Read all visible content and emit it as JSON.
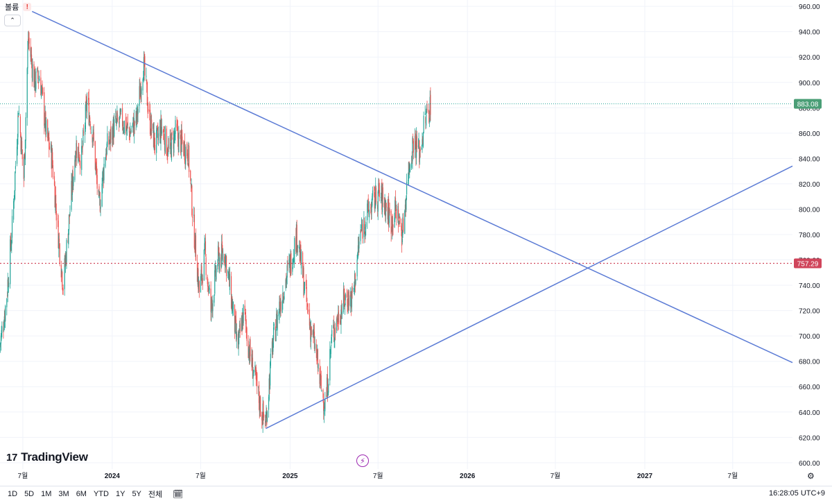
{
  "header": {
    "volume_label": "볼륨",
    "alert_icon": "exclamation-icon",
    "collapse_icon": "chevron-up-icon"
  },
  "logo": {
    "text": "TradingView",
    "icon": "tradingview-logo-icon"
  },
  "bottom_bar": {
    "ranges": [
      "1D",
      "5D",
      "1M",
      "3M",
      "6M",
      "YTD",
      "1Y",
      "5Y",
      "전체"
    ],
    "calendar_icon": "calendar-range-icon",
    "clock": "16:28:05 UTC+9"
  },
  "colors": {
    "up": "#26a69a",
    "down": "#ef5350",
    "trendline": "#5b7bd5",
    "price_label_bg": "#4a9e76",
    "hline_label_bg": "#d0455b",
    "grid": "#f0f3fa"
  },
  "chart_data": {
    "type": "candlestick",
    "y_axis": {
      "ylim": [
        595,
        965
      ],
      "ticks": [
        960,
        940,
        920,
        900,
        880,
        860,
        840,
        820,
        800,
        780,
        760,
        740,
        720,
        700,
        680,
        660,
        640,
        620,
        600
      ]
    },
    "x_axis": {
      "range": [
        "2023-05-15",
        "2027-11-01"
      ],
      "ticks": [
        {
          "date": "2023-07-01",
          "label": "7월"
        },
        {
          "date": "2024-01-01",
          "label": "2024"
        },
        {
          "date": "2024-07-01",
          "label": "7월"
        },
        {
          "date": "2025-01-01",
          "label": "2025"
        },
        {
          "date": "2025-07-01",
          "label": "7월"
        },
        {
          "date": "2026-01-01",
          "label": "2026"
        },
        {
          "date": "2026-07-01",
          "label": "7월"
        },
        {
          "date": "2027-01-01",
          "label": "2027"
        },
        {
          "date": "2027-07-01",
          "label": "7월"
        }
      ]
    },
    "price_anchors": [
      [
        "2023-05-15",
        693
      ],
      [
        "2023-05-28",
        728
      ],
      [
        "2023-06-10",
        790
      ],
      [
        "2023-06-22",
        880
      ],
      [
        "2023-07-03",
        825
      ],
      [
        "2023-07-12",
        935
      ],
      [
        "2023-07-25",
        900
      ],
      [
        "2023-08-05",
        905
      ],
      [
        "2023-08-18",
        860
      ],
      [
        "2023-08-30",
        840
      ],
      [
        "2023-09-12",
        780
      ],
      [
        "2023-09-22",
        740
      ],
      [
        "2023-10-05",
        795
      ],
      [
        "2023-10-18",
        850
      ],
      [
        "2023-10-30",
        840
      ],
      [
        "2023-11-10",
        885
      ],
      [
        "2023-11-22",
        860
      ],
      [
        "2023-12-05",
        800
      ],
      [
        "2023-12-18",
        845
      ],
      [
        "2024-01-05",
        865
      ],
      [
        "2024-01-22",
        870
      ],
      [
        "2024-02-05",
        860
      ],
      [
        "2024-02-20",
        870
      ],
      [
        "2024-03-05",
        915
      ],
      [
        "2024-03-18",
        870
      ],
      [
        "2024-03-30",
        850
      ],
      [
        "2024-04-12",
        865
      ],
      [
        "2024-04-26",
        845
      ],
      [
        "2024-05-10",
        860
      ],
      [
        "2024-05-25",
        850
      ],
      [
        "2024-06-05",
        845
      ],
      [
        "2024-06-18",
        780
      ],
      [
        "2024-06-28",
        735
      ],
      [
        "2024-07-10",
        765
      ],
      [
        "2024-07-22",
        720
      ],
      [
        "2024-08-05",
        760
      ],
      [
        "2024-08-20",
        765
      ],
      [
        "2024-09-02",
        730
      ],
      [
        "2024-09-15",
        690
      ],
      [
        "2024-09-28",
        720
      ],
      [
        "2024-10-08",
        690
      ],
      [
        "2024-10-20",
        668
      ],
      [
        "2024-11-03",
        640
      ],
      [
        "2024-11-12",
        632
      ],
      [
        "2024-11-25",
        690
      ],
      [
        "2024-12-08",
        720
      ],
      [
        "2024-12-20",
        740
      ],
      [
        "2025-01-03",
        760
      ],
      [
        "2025-01-15",
        780
      ],
      [
        "2025-01-28",
        745
      ],
      [
        "2025-02-10",
        710
      ],
      [
        "2025-02-22",
        690
      ],
      [
        "2025-03-05",
        660
      ],
      [
        "2025-03-15",
        645
      ],
      [
        "2025-03-28",
        700
      ],
      [
        "2025-04-10",
        715
      ],
      [
        "2025-04-25",
        730
      ],
      [
        "2025-05-10",
        730
      ],
      [
        "2025-05-25",
        780
      ],
      [
        "2025-06-08",
        795
      ],
      [
        "2025-06-20",
        805
      ],
      [
        "2025-07-02",
        812
      ],
      [
        "2025-07-15",
        805
      ],
      [
        "2025-07-28",
        790
      ],
      [
        "2025-08-08",
        800
      ],
      [
        "2025-08-20",
        780
      ],
      [
        "2025-09-01",
        830
      ],
      [
        "2025-09-12",
        855
      ],
      [
        "2025-09-25",
        845
      ],
      [
        "2025-10-05",
        870
      ],
      [
        "2025-10-18",
        883
      ]
    ],
    "last_price": {
      "value": 883.08,
      "label": "883.08"
    },
    "horizontal_line": {
      "value": 757.29,
      "label": "757.29"
    },
    "trendlines": [
      {
        "name": "descending",
        "from": [
          "2023-07-20",
          956
        ],
        "to": [
          "2027-11-01",
          679
        ]
      },
      {
        "name": "ascending",
        "from": [
          "2024-11-12",
          627
        ],
        "to": [
          "2027-11-01",
          834
        ]
      }
    ]
  }
}
